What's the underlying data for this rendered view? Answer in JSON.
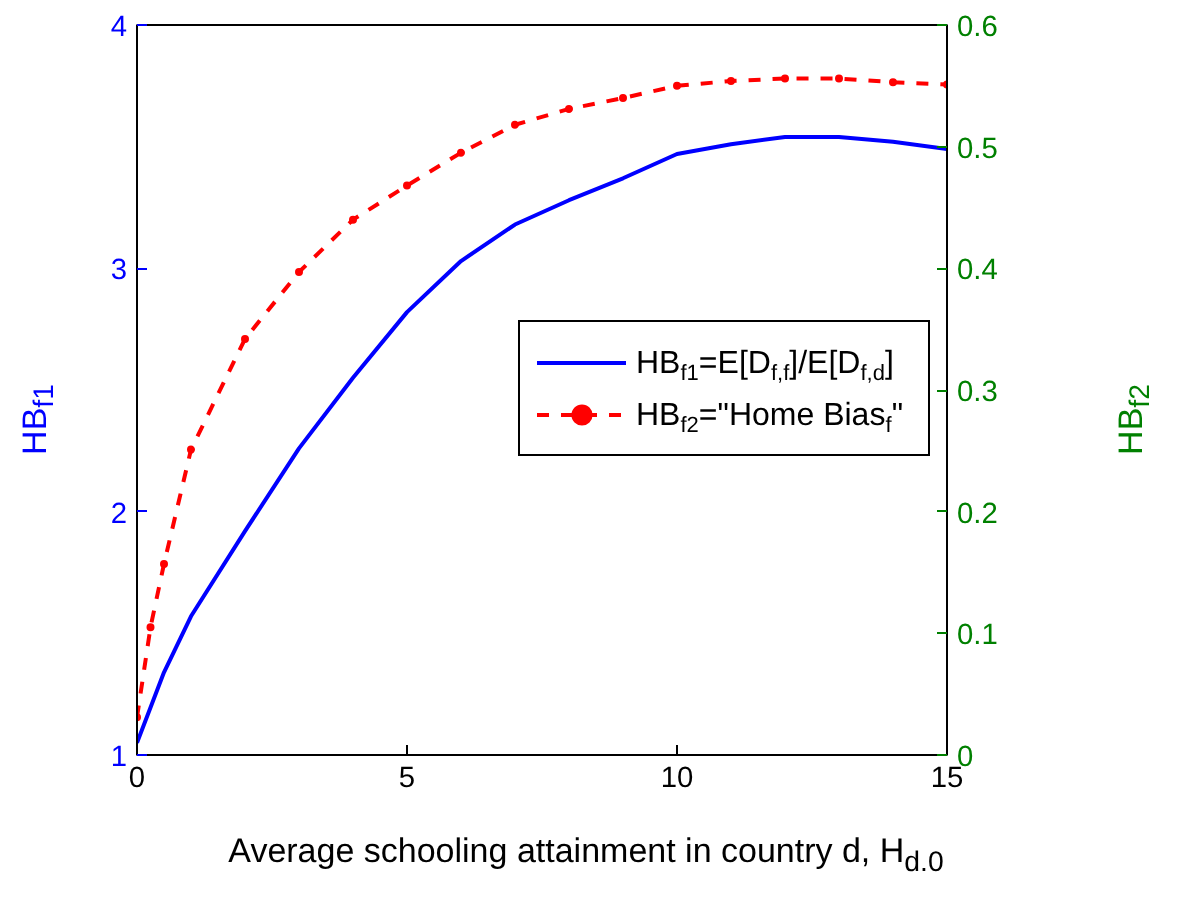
{
  "chart_data": {
    "type": "line",
    "xlabel": "Average schooling attainment in country d, H$_{d.0}$",
    "ylabel": "HB$_{f1}$",
    "y2label": "HB$_{f2}$",
    "xlim": [
      0,
      15
    ],
    "xticks": [
      0,
      5,
      10,
      15
    ],
    "ylim": [
      1,
      4
    ],
    "yticks": [
      1,
      2,
      3,
      4
    ],
    "y2lim": [
      0,
      0.6
    ],
    "y2ticks": [
      0,
      0.1,
      0.2,
      0.3,
      0.4,
      0.5,
      0.6
    ],
    "grid": false,
    "legend": "right",
    "series": [
      {
        "name": "HB$_{f1}$=E[D$_{f,f}$]/E[D$_{f,d}$]",
        "color": "#0000ff",
        "line_style": "solid",
        "marker": "none",
        "x": [
          0,
          0.5,
          1,
          2,
          3,
          4,
          5,
          6,
          7,
          8,
          9,
          10,
          11,
          12,
          13,
          14,
          15
        ],
        "values": [
          1.05,
          1.34,
          1.57,
          1.92,
          2.26,
          2.55,
          2.82,
          3.03,
          3.18,
          3.28,
          3.37,
          3.47,
          3.51,
          3.54,
          3.54,
          3.52,
          3.49
        ]
      },
      {
        "name": "HB$_{f2}$=\"Home Bias$_{f}$\"",
        "color": "#ff0000",
        "line_style": "dashed",
        "marker": "circle",
        "axis": "y2",
        "x": [
          0,
          0.25,
          0.5,
          1,
          2,
          3,
          4,
          5,
          6,
          7,
          8,
          9,
          10,
          11,
          12,
          13,
          14,
          15
        ],
        "values": [
          0.031,
          0.105,
          0.157,
          0.251,
          0.342,
          0.397,
          0.44,
          0.468,
          0.495,
          0.518,
          0.531,
          0.54,
          0.55,
          0.554,
          0.556,
          0.556,
          0.553,
          0.551
        ]
      }
    ]
  }
}
